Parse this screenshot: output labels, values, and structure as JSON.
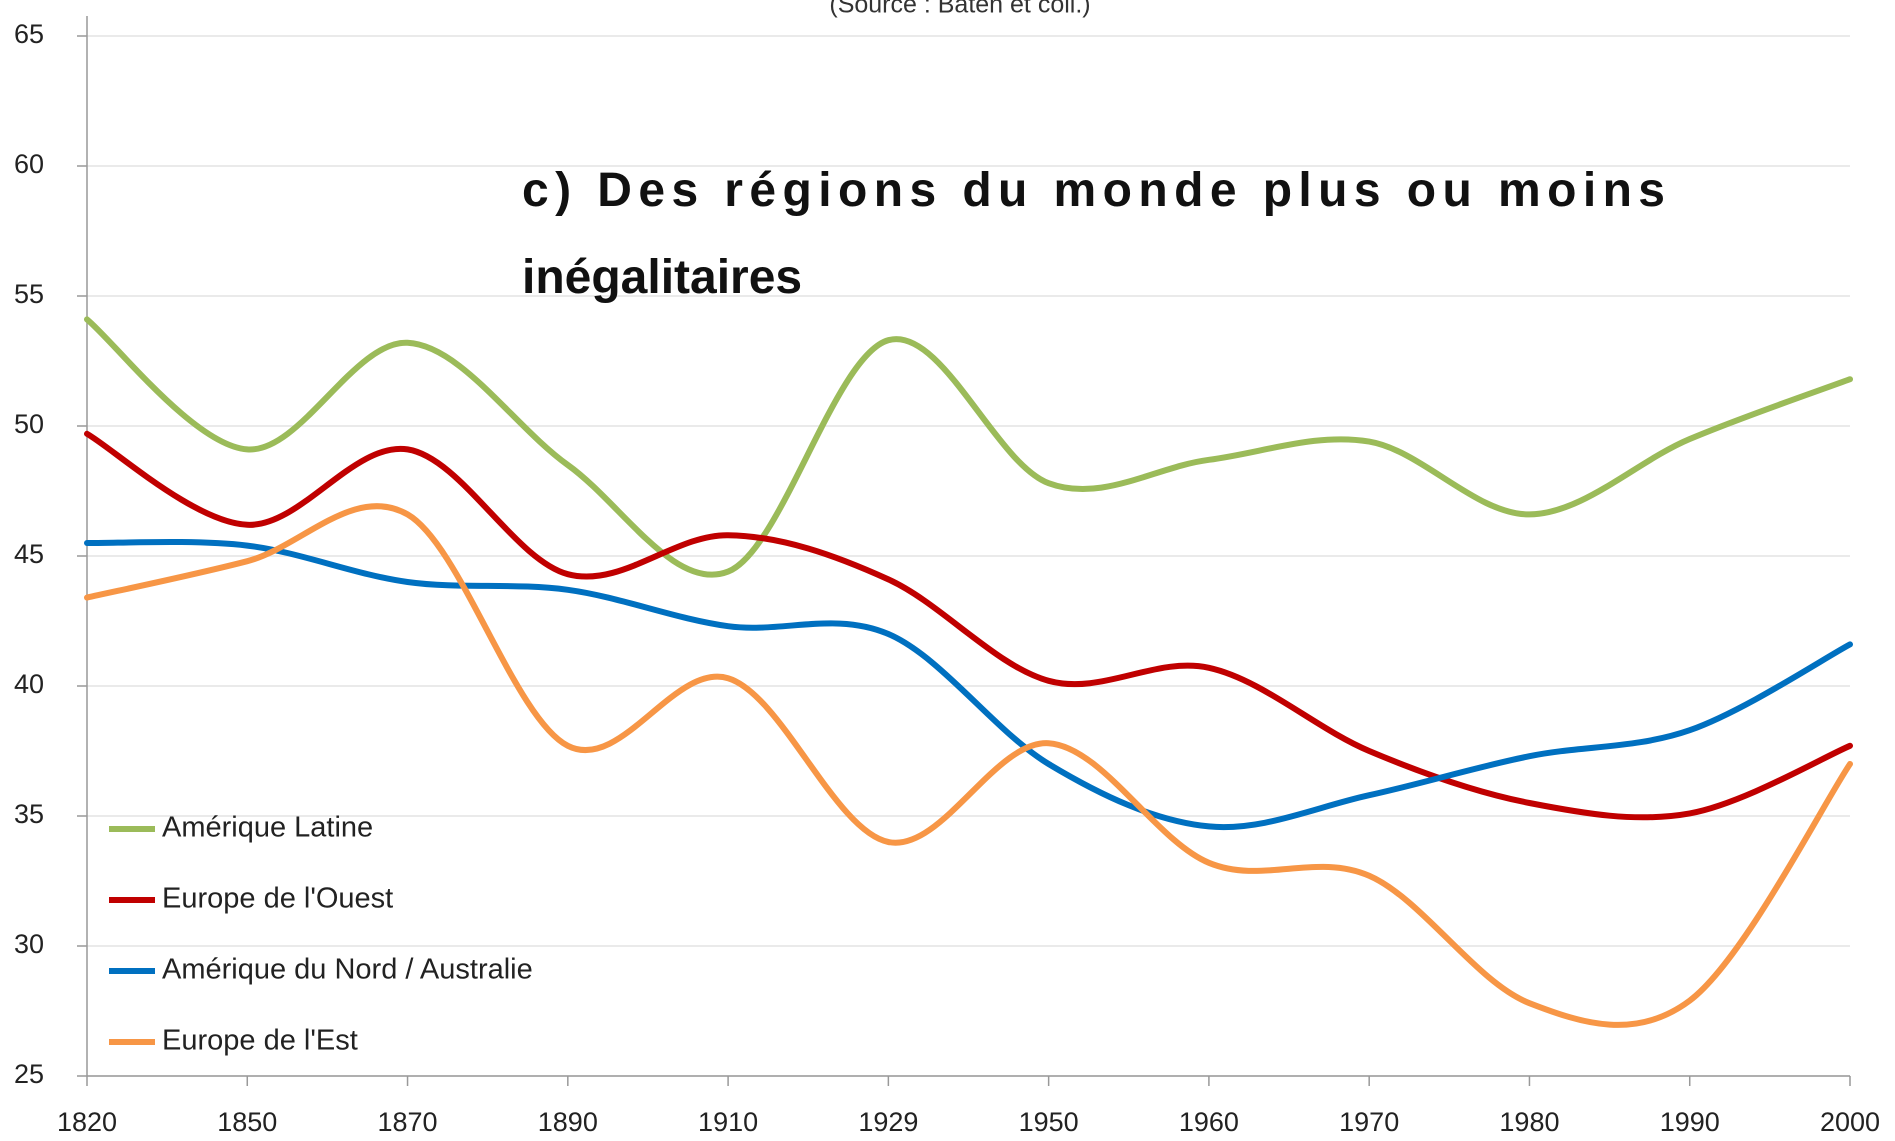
{
  "chart_data": {
    "type": "line",
    "subtitle": "(Source : Baten et coll.)",
    "annotation": "c) Des régions du monde plus ou moins inégalitaires",
    "categories": [
      "1820",
      "1850",
      "1870",
      "1890",
      "1910",
      "1929",
      "1950",
      "1960",
      "1970",
      "1980",
      "1990",
      "2000"
    ],
    "series": [
      {
        "name": "Amérique Latine",
        "color": "#9bbb59",
        "values": [
          54.1,
          49.1,
          53.2,
          48.5,
          44.4,
          53.3,
          47.8,
          48.7,
          49.4,
          46.6,
          49.5,
          51.8
        ]
      },
      {
        "name": "Europe de l'Ouest",
        "color": "#c00000",
        "values": [
          49.7,
          46.2,
          49.1,
          44.3,
          45.8,
          44.1,
          40.2,
          40.7,
          37.5,
          35.5,
          35.1,
          37.7
        ]
      },
      {
        "name": "Amérique du Nord / Australie",
        "color": "#0070c0",
        "values": [
          45.5,
          45.4,
          44.0,
          43.7,
          42.3,
          42.0,
          37.0,
          34.6,
          35.8,
          37.3,
          38.3,
          41.6
        ]
      },
      {
        "name": "Europe de l'Est",
        "color": "#f79646",
        "values": [
          43.4,
          44.8,
          46.6,
          37.7,
          40.3,
          34.0,
          37.8,
          33.2,
          32.7,
          27.8,
          27.9,
          37.0
        ]
      }
    ],
    "ylim": [
      25,
      65
    ],
    "yticks": [
      25,
      30,
      35,
      40,
      45,
      50,
      55,
      60,
      65
    ],
    "grid": true,
    "legend": "lower left"
  }
}
